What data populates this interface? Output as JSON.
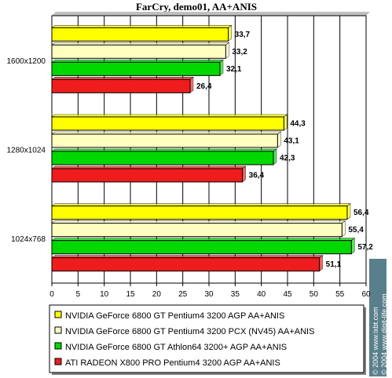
{
  "chart_data": {
    "type": "bar",
    "orientation": "horizontal",
    "title": "FarCry, demo01, AA+ANIS",
    "categories": [
      "1600x1200",
      "1280x1024",
      "1024x768"
    ],
    "series": [
      {
        "name": "NVIDIA GeForce 6800 GT Pentium4 3200 AGP AA+ANIS",
        "color": "#ffff00",
        "values": [
          33.7,
          44.3,
          56.4
        ],
        "labels": [
          "33,7",
          "44,3",
          "56,4"
        ]
      },
      {
        "name": "NVIDIA GeForce 6800 GT Pentium4 3200 PCX (NV45) AA+ANIS",
        "color": "#ffffc0",
        "values": [
          33.2,
          43.1,
          55.4
        ],
        "labels": [
          "33,2",
          "43,1",
          "55,4"
        ]
      },
      {
        "name": "NVIDIA GeForce 6800 GT Athlon64 3200+ AGP AA+ANIS",
        "color": "#00d800",
        "values": [
          32.1,
          42.3,
          57.2
        ],
        "labels": [
          "32,1",
          "42,3",
          "57,2"
        ]
      },
      {
        "name": "ATI RADEON X800 PRO Pentium4 3200 AGP AA+ANIS",
        "color": "#ee1c1c",
        "values": [
          26.4,
          36.4,
          51.1
        ],
        "labels": [
          "26,4",
          "36,4",
          "51,1"
        ]
      }
    ],
    "xlim": [
      0,
      60
    ],
    "xticks": [
      0,
      5,
      10,
      15,
      20,
      25,
      30,
      35,
      40,
      45,
      50,
      55,
      60
    ],
    "grid": true,
    "legend_position": "bottom"
  },
  "watermark": {
    "line1": "© 2004 www.ixbt.com",
    "line2": "© 2004 www.digit-life.com"
  }
}
